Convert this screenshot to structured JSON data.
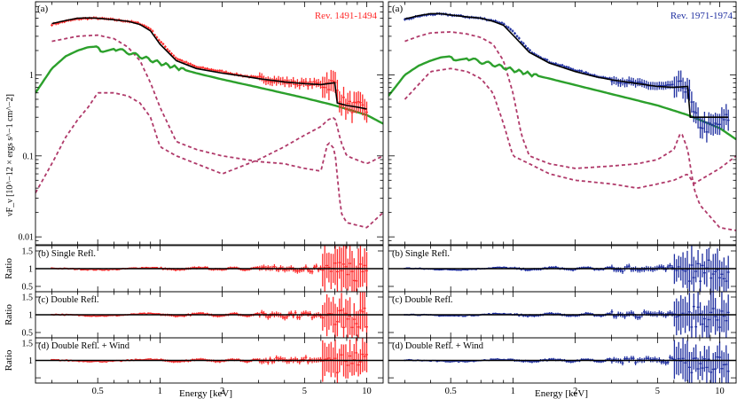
{
  "figure": {
    "energy_label": "Energy [keV]",
    "flux_label": "νF_ν [10^−12 × ergs s^−1 cm^−2]",
    "ratio_label": "Ratio",
    "panel_tag": "(a)"
  },
  "colors": {
    "red_data": "#ff2a2a",
    "blue_data": "#1f2fa0",
    "model": "#000000",
    "continuum": "#2ca02c",
    "reflection": "#b03a6a"
  },
  "chart_data": [
    {
      "type": "line",
      "panel": "left-spectrum",
      "title": "Rev. 1491-1494",
      "xlabel": "Energy [keV]",
      "ylabel": "νF_ν [10^−12 × ergs s^−1 cm^−2]",
      "xscale": "log",
      "yscale": "log",
      "xlim": [
        0.25,
        12
      ],
      "ylim": [
        0.008,
        8
      ],
      "xticks": [
        "0.5",
        "1",
        "2",
        "5",
        "10"
      ],
      "yticks": [
        "0.01",
        "0.1",
        "1"
      ],
      "series": [
        {
          "role": "data",
          "x": [
            0.3,
            0.35,
            0.4,
            0.45,
            0.5,
            0.6,
            0.7,
            0.8,
            0.9,
            1.0,
            1.2,
            1.5,
            2.0,
            2.5,
            3.0,
            4.0,
            5.0,
            6.0,
            7.0,
            7.5,
            8.0,
            9.0,
            10.0
          ],
          "y": [
            4.2,
            4.6,
            4.9,
            5.0,
            5.0,
            4.8,
            4.6,
            4.3,
            3.7,
            2.6,
            1.6,
            1.25,
            1.1,
            0.98,
            0.92,
            0.82,
            0.78,
            0.78,
            0.78,
            0.5,
            0.42,
            0.4,
            0.38
          ]
        },
        {
          "role": "total-model",
          "x": [
            0.3,
            0.35,
            0.4,
            0.45,
            0.5,
            0.6,
            0.7,
            0.8,
            0.9,
            1.0,
            1.2,
            1.5,
            2.0,
            2.5,
            3.0,
            4.0,
            5.0,
            6.0,
            7.0,
            7.2,
            8.0,
            9.0,
            10.0
          ],
          "y": [
            4.3,
            4.7,
            5.0,
            5.05,
            5.0,
            4.8,
            4.6,
            4.2,
            3.5,
            2.4,
            1.5,
            1.2,
            1.05,
            0.97,
            0.9,
            0.82,
            0.78,
            0.76,
            0.8,
            0.45,
            0.42,
            0.4,
            0.38
          ]
        },
        {
          "role": "continuum",
          "x": [
            0.25,
            0.3,
            0.35,
            0.4,
            0.45,
            0.5,
            0.52,
            0.6,
            0.7,
            0.8,
            1.0,
            1.5,
            2.0,
            3.0,
            5.0,
            7.0,
            10.0,
            12.0
          ],
          "y": [
            0.6,
            1.2,
            1.7,
            2.0,
            2.2,
            2.25,
            1.9,
            2.1,
            1.9,
            1.7,
            1.4,
            1.05,
            0.88,
            0.7,
            0.52,
            0.42,
            0.32,
            0.25
          ]
        },
        {
          "role": "reflector-1",
          "x": [
            0.3,
            0.4,
            0.5,
            0.6,
            0.7,
            0.8,
            0.9,
            1.0,
            1.2,
            1.5,
            2.0,
            3.0,
            4.0,
            5.0,
            6.0,
            6.5,
            7.0,
            7.5,
            8.0,
            10.0,
            12.0
          ],
          "y": [
            2.6,
            3.0,
            3.1,
            2.8,
            2.2,
            1.5,
            0.8,
            0.4,
            0.15,
            0.12,
            0.1,
            0.085,
            0.08,
            0.07,
            0.065,
            0.15,
            0.12,
            0.02,
            0.015,
            0.013,
            0.02
          ]
        },
        {
          "role": "reflector-2",
          "x": [
            0.25,
            0.3,
            0.35,
            0.4,
            0.45,
            0.5,
            0.6,
            0.7,
            0.8,
            0.9,
            1.0,
            1.2,
            1.5,
            2.0,
            3.0,
            4.0,
            5.0,
            6.0,
            6.5,
            7.0,
            7.5,
            8.0,
            10.0,
            12.0
          ],
          "y": [
            0.035,
            0.08,
            0.17,
            0.28,
            0.4,
            0.6,
            0.6,
            0.55,
            0.45,
            0.3,
            0.13,
            0.1,
            0.08,
            0.06,
            0.09,
            0.13,
            0.18,
            0.23,
            0.28,
            0.3,
            0.15,
            0.1,
            0.08,
            0.1
          ]
        }
      ]
    },
    {
      "type": "line",
      "panel": "right-spectrum",
      "title": "Rev. 1971-1974",
      "xlabel": "Energy [keV]",
      "xscale": "log",
      "yscale": "log",
      "xlim": [
        0.25,
        12
      ],
      "ylim": [
        0.008,
        8
      ],
      "xticks": [
        "0.5",
        "1",
        "2",
        "5",
        "10"
      ],
      "series": [
        {
          "role": "data",
          "x": [
            0.3,
            0.35,
            0.4,
            0.45,
            0.5,
            0.6,
            0.7,
            0.8,
            0.9,
            1.0,
            1.2,
            1.5,
            2.0,
            2.5,
            3.0,
            4.0,
            5.0,
            6.0,
            7.0,
            7.5,
            8.0,
            9.0,
            10.0,
            11.0
          ],
          "y": [
            4.8,
            5.3,
            5.6,
            5.6,
            5.5,
            5.2,
            5.0,
            4.7,
            4.3,
            3.4,
            2.0,
            1.45,
            1.15,
            0.98,
            0.88,
            0.78,
            0.72,
            0.72,
            0.72,
            0.32,
            0.25,
            0.22,
            0.25,
            0.3
          ]
        },
        {
          "role": "total-model",
          "x": [
            0.3,
            0.35,
            0.4,
            0.45,
            0.5,
            0.6,
            0.7,
            0.8,
            0.9,
            1.0,
            1.2,
            1.5,
            2.0,
            2.5,
            3.0,
            4.0,
            5.0,
            6.0,
            7.0,
            7.2,
            8.0,
            9.0,
            10.0,
            11.0
          ],
          "y": [
            4.9,
            5.4,
            5.7,
            5.7,
            5.5,
            5.2,
            5.0,
            4.6,
            4.1,
            3.1,
            1.9,
            1.4,
            1.1,
            0.95,
            0.87,
            0.78,
            0.72,
            0.7,
            0.72,
            0.3,
            0.3,
            0.3,
            0.3,
            0.3
          ]
        },
        {
          "role": "continuum",
          "x": [
            0.25,
            0.3,
            0.35,
            0.4,
            0.45,
            0.5,
            0.52,
            0.6,
            0.7,
            0.8,
            1.0,
            1.5,
            2.0,
            3.0,
            5.0,
            7.0,
            10.0,
            12.0
          ],
          "y": [
            0.55,
            1.0,
            1.3,
            1.5,
            1.65,
            1.7,
            1.5,
            1.6,
            1.45,
            1.35,
            1.15,
            0.9,
            0.75,
            0.58,
            0.42,
            0.32,
            0.22,
            0.16
          ]
        },
        {
          "role": "reflector-1",
          "x": [
            0.3,
            0.35,
            0.4,
            0.5,
            0.6,
            0.7,
            0.8,
            0.9,
            1.0,
            1.1,
            1.2,
            1.5,
            2.0,
            3.0,
            4.0,
            5.0,
            6.0,
            6.5,
            7.0,
            7.5,
            8.0,
            10.0,
            12.0
          ],
          "y": [
            2.6,
            3.0,
            3.3,
            3.4,
            3.2,
            2.9,
            2.4,
            1.5,
            0.6,
            0.18,
            0.1,
            0.08,
            0.07,
            0.075,
            0.08,
            0.09,
            0.12,
            0.2,
            0.12,
            0.04,
            0.025,
            0.013,
            0.012
          ]
        },
        {
          "role": "reflector-2",
          "x": [
            0.3,
            0.4,
            0.5,
            0.6,
            0.7,
            0.8,
            0.9,
            1.0,
            1.2,
            1.5,
            2.0,
            3.0,
            4.0,
            5.0,
            6.0,
            7.0,
            7.5,
            8.0,
            10.0,
            12.0
          ],
          "y": [
            0.5,
            1.1,
            1.2,
            1.1,
            0.9,
            0.6,
            0.25,
            0.1,
            0.08,
            0.06,
            0.05,
            0.045,
            0.04,
            0.045,
            0.05,
            0.06,
            0.045,
            0.05,
            0.07,
            0.1
          ]
        }
      ]
    },
    {
      "type": "line",
      "panel": "left-ratio-b",
      "title": "(b) Single Refl.",
      "ylabel": "Ratio",
      "xscale": "log",
      "xlim": [
        0.25,
        12
      ],
      "ylim": [
        0.35,
        1.65
      ],
      "yticks": [
        "0.5",
        "1",
        "1.5"
      ],
      "reference_line": 1,
      "errorbar_growth": 0.7
    },
    {
      "type": "line",
      "panel": "left-ratio-c",
      "title": "(c) Double Refl.",
      "ylabel": "Ratio",
      "xscale": "log",
      "xlim": [
        0.25,
        12
      ],
      "ylim": [
        0.35,
        1.65
      ],
      "yticks": [
        "0.5",
        "1",
        "1.5"
      ],
      "reference_line": 1,
      "errorbar_growth": 0.6
    },
    {
      "type": "line",
      "panel": "left-ratio-d",
      "title": "(d) Double Refl. + Wind",
      "ylabel": "Ratio",
      "xscale": "log",
      "xlim": [
        0.25,
        12
      ],
      "ylim": [
        0.35,
        1.65
      ],
      "yticks": [
        "1",
        "1.5"
      ],
      "reference_line": 1,
      "errorbar_growth": 0.6
    },
    {
      "type": "line",
      "panel": "right-ratio-b",
      "title": "(b) Single Refl.",
      "xscale": "log",
      "xlim": [
        0.25,
        12
      ],
      "ylim": [
        0.35,
        1.65
      ],
      "reference_line": 1,
      "errorbar_growth": 0.6
    },
    {
      "type": "line",
      "panel": "right-ratio-c",
      "title": "(c) Double Refl.",
      "xscale": "log",
      "xlim": [
        0.25,
        12
      ],
      "ylim": [
        0.35,
        1.65
      ],
      "reference_line": 1,
      "errorbar_growth": 0.6
    },
    {
      "type": "line",
      "panel": "right-ratio-d",
      "title": "(d) Double Refl. + Wind",
      "xscale": "log",
      "xlim": [
        0.25,
        12
      ],
      "ylim": [
        0.35,
        1.65
      ],
      "reference_line": 1,
      "errorbar_growth": 0.6
    }
  ]
}
